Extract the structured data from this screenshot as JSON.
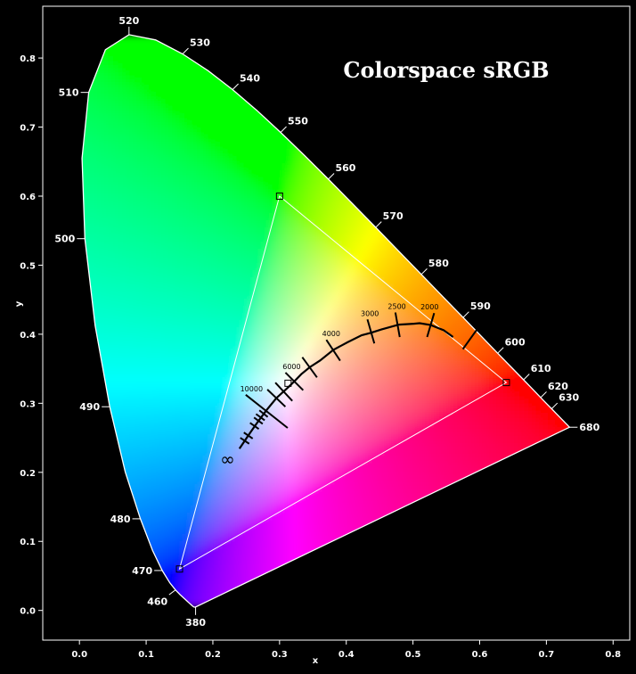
{
  "chart_data": {
    "type": "scatter",
    "title": "Colorspace sRGB",
    "xlabel": "x",
    "ylabel": "y",
    "xlim": [
      -0.055,
      0.825
    ],
    "ylim": [
      -0.043,
      0.875
    ],
    "x_ticks": [
      0.0,
      0.1,
      0.2,
      0.3,
      0.4,
      0.5,
      0.6,
      0.7,
      0.8
    ],
    "x_tick_labels": [
      "0.0",
      "0.1",
      "0.2",
      "0.3",
      "0.4",
      "0.5",
      "0.6",
      "0.7",
      "0.8"
    ],
    "y_ticks": [
      0.0,
      0.1,
      0.2,
      0.3,
      0.4,
      0.5,
      0.6,
      0.7,
      0.8
    ],
    "y_tick_labels": [
      "0.0",
      "0.1",
      "0.2",
      "0.3",
      "0.4",
      "0.5",
      "0.6",
      "0.7",
      "0.8"
    ],
    "spectral_locus": {
      "x": [
        0.1741,
        0.174,
        0.1738,
        0.1736,
        0.1733,
        0.173,
        0.1726,
        0.1721,
        0.1714,
        0.1703,
        0.1689,
        0.1669,
        0.1644,
        0.1611,
        0.1566,
        0.151,
        0.144,
        0.1355,
        0.1241,
        0.1096,
        0.0913,
        0.0687,
        0.0454,
        0.0235,
        0.0082,
        0.0039,
        0.0139,
        0.0389,
        0.0743,
        0.1142,
        0.1547,
        0.1929,
        0.2296,
        0.2658,
        0.3016,
        0.3373,
        0.3731,
        0.4087,
        0.4441,
        0.4788,
        0.5125,
        0.5448,
        0.5752,
        0.6029,
        0.627,
        0.6482,
        0.6658,
        0.6801,
        0.6915,
        0.7006,
        0.7079,
        0.714,
        0.719,
        0.723,
        0.726,
        0.7283,
        0.73,
        0.7311,
        0.732,
        0.7327,
        0.7334,
        0.734,
        0.7344,
        0.7346,
        0.7347
      ],
      "y": [
        0.005,
        0.005,
        0.0049,
        0.0049,
        0.0048,
        0.0048,
        0.0048,
        0.0048,
        0.0051,
        0.0058,
        0.0069,
        0.0086,
        0.0109,
        0.0138,
        0.0177,
        0.0227,
        0.0297,
        0.0399,
        0.0578,
        0.0868,
        0.1327,
        0.2007,
        0.295,
        0.4127,
        0.5384,
        0.6548,
        0.7502,
        0.812,
        0.8338,
        0.8262,
        0.8059,
        0.7816,
        0.7543,
        0.7243,
        0.6923,
        0.6589,
        0.6245,
        0.5896,
        0.5547,
        0.5202,
        0.4866,
        0.4544,
        0.4242,
        0.3965,
        0.3725,
        0.3514,
        0.334,
        0.3197,
        0.3083,
        0.2993,
        0.292,
        0.2859,
        0.2809,
        0.277,
        0.274,
        0.2717,
        0.27,
        0.2689,
        0.268,
        0.2673,
        0.2666,
        0.266,
        0.2656,
        0.2654,
        0.2653
      ]
    },
    "wavelength_labels": [
      {
        "label": "380",
        "x": 0.1741,
        "y": 0.005,
        "dir": "s"
      },
      {
        "label": "460",
        "x": 0.144,
        "y": 0.0297,
        "dir": "sw"
      },
      {
        "label": "470",
        "x": 0.1241,
        "y": 0.0578,
        "dir": "w"
      },
      {
        "label": "480",
        "x": 0.0913,
        "y": 0.1327,
        "dir": "w"
      },
      {
        "label": "490",
        "x": 0.0454,
        "y": 0.295,
        "dir": "w"
      },
      {
        "label": "500",
        "x": 0.0082,
        "y": 0.5384,
        "dir": "w"
      },
      {
        "label": "510",
        "x": 0.0139,
        "y": 0.7502,
        "dir": "w"
      },
      {
        "label": "520",
        "x": 0.0743,
        "y": 0.8338,
        "dir": "n"
      },
      {
        "label": "530",
        "x": 0.1547,
        "y": 0.8059,
        "dir": "ne"
      },
      {
        "label": "540",
        "x": 0.2296,
        "y": 0.7543,
        "dir": "ne"
      },
      {
        "label": "550",
        "x": 0.3016,
        "y": 0.6923,
        "dir": "ne"
      },
      {
        "label": "560",
        "x": 0.3731,
        "y": 0.6245,
        "dir": "ne"
      },
      {
        "label": "570",
        "x": 0.4441,
        "y": 0.5547,
        "dir": "ne"
      },
      {
        "label": "580",
        "x": 0.5125,
        "y": 0.4866,
        "dir": "ne"
      },
      {
        "label": "590",
        "x": 0.5752,
        "y": 0.4242,
        "dir": "ne"
      },
      {
        "label": "600",
        "x": 0.627,
        "y": 0.3725,
        "dir": "ne"
      },
      {
        "label": "610",
        "x": 0.6658,
        "y": 0.334,
        "dir": "ne"
      },
      {
        "label": "620",
        "x": 0.6915,
        "y": 0.3083,
        "dir": "ne"
      },
      {
        "label": "630",
        "x": 0.7079,
        "y": 0.292,
        "dir": "ne"
      },
      {
        "label": "680",
        "x": 0.7347,
        "y": 0.2653,
        "dir": "e"
      }
    ],
    "srgb_gamut": {
      "red": [
        0.64,
        0.33
      ],
      "green": [
        0.3,
        0.6
      ],
      "blue": [
        0.15,
        0.06
      ],
      "white": [
        0.3127,
        0.329
      ]
    },
    "planckian_locus": {
      "x": [
        0.2399,
        0.2478,
        0.2531,
        0.26,
        0.2693,
        0.2807,
        0.2952,
        0.3138,
        0.3221,
        0.3324,
        0.3451,
        0.3608,
        0.3805,
        0.4019,
        0.4231,
        0.4369,
        0.4526,
        0.479,
        0.5015,
        0.51,
        0.5265,
        0.5459,
        0.56
      ],
      "y": [
        0.2342,
        0.2457,
        0.2533,
        0.263,
        0.2758,
        0.2904,
        0.3075,
        0.3239,
        0.3317,
        0.342,
        0.3521,
        0.362,
        0.3773,
        0.3884,
        0.3986,
        0.402,
        0.4068,
        0.4139,
        0.4152,
        0.416,
        0.4133,
        0.4058,
        0.396
      ]
    },
    "cct_ticks": [
      {
        "t": 25000,
        "x": 0.2478,
        "y": 0.2457,
        "label": ""
      },
      {
        "t": 20000,
        "x": 0.2531,
        "y": 0.2533,
        "label": ""
      },
      {
        "t": 15000,
        "x": 0.2623,
        "y": 0.2672,
        "label": ""
      },
      {
        "t": 13000,
        "x": 0.2682,
        "y": 0.2748,
        "label": ""
      },
      {
        "t": 12000,
        "x": 0.2712,
        "y": 0.2799,
        "label": ""
      },
      {
        "t": 11000,
        "x": 0.276,
        "y": 0.285,
        "label": ""
      },
      {
        "t": 10000,
        "x": 0.2807,
        "y": 0.2883,
        "label": "10000"
      },
      {
        "t": 8000,
        "x": 0.2952,
        "y": 0.3075,
        "label": ""
      },
      {
        "t": 7000,
        "x": 0.3064,
        "y": 0.3166,
        "label": ""
      },
      {
        "t": 6000,
        "x": 0.3221,
        "y": 0.3317,
        "label": "6000"
      },
      {
        "t": 5000,
        "x": 0.3451,
        "y": 0.3521,
        "label": ""
      },
      {
        "t": 4000,
        "x": 0.3805,
        "y": 0.3768,
        "label": "4000"
      },
      {
        "t": 3000,
        "x": 0.4369,
        "y": 0.4041,
        "label": "3000"
      },
      {
        "t": 2500,
        "x": 0.4769,
        "y": 0.4137,
        "label": "2500"
      },
      {
        "t": 2000,
        "x": 0.5265,
        "y": 0.4133,
        "label": "2000"
      },
      {
        "t": 1500,
        "x": 0.5857,
        "y": 0.3931,
        "label": ""
      }
    ],
    "infinity_label": {
      "label": "∞",
      "x": 0.222,
      "y": 0.219
    },
    "grid": false,
    "legend": "none"
  }
}
